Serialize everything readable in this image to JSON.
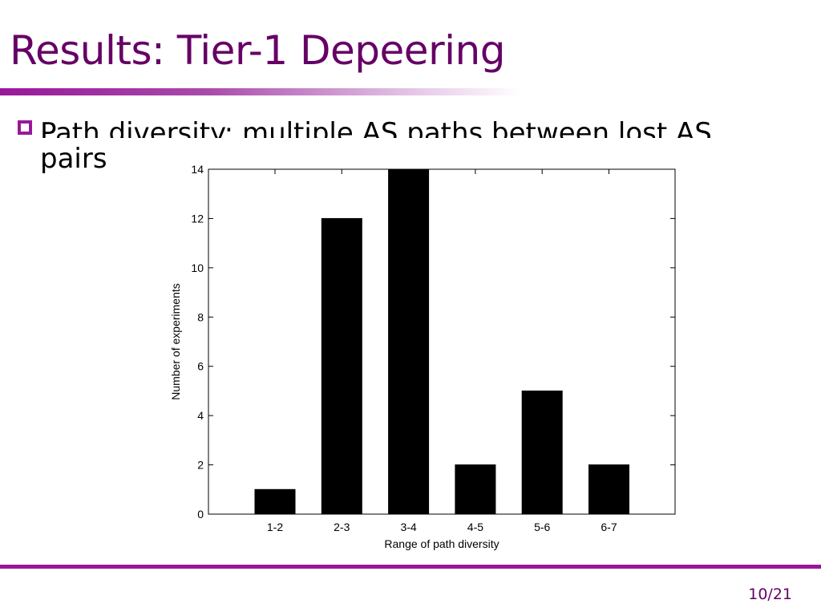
{
  "slide": {
    "title": "Results: Tier-1 Depeering",
    "bullet_line1": "Path diversity: multiple AS paths between lost AS",
    "bullet_line2": "pairs",
    "page_number": "10/21"
  },
  "colors": {
    "title": "#660066",
    "accent": "#99189a",
    "bars": "#000000"
  },
  "chart_data": {
    "type": "bar",
    "categories": [
      "1-2",
      "2-3",
      "3-4",
      "4-5",
      "5-6",
      "6-7"
    ],
    "values": [
      1,
      12,
      14,
      2,
      5,
      2
    ],
    "xlabel": "Range of path diversity",
    "ylabel": "Number of experiments",
    "ylim": [
      0,
      14
    ],
    "yticks": [
      0,
      2,
      4,
      6,
      8,
      10,
      12,
      14
    ],
    "grid": false,
    "legend": false
  }
}
